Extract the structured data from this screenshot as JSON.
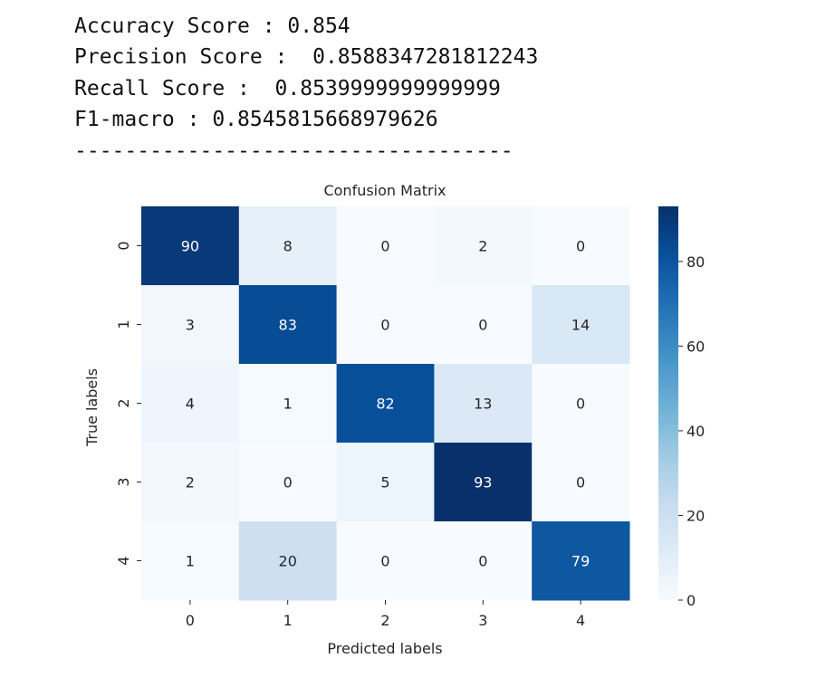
{
  "output_lines": [
    "Accuracy Score : 0.854",
    "Precision Score :  0.8588347281812243",
    "Recall Score :  0.8539999999999999",
    "F1-macro : 0.8545815668979626",
    "-----------------------------------"
  ],
  "chart_data": {
    "type": "heatmap",
    "title": "Confusion Matrix",
    "xlabel": "Predicted labels",
    "ylabel": "True labels",
    "x_categories": [
      "0",
      "1",
      "2",
      "3",
      "4"
    ],
    "y_categories": [
      "0",
      "1",
      "2",
      "3",
      "4"
    ],
    "values": [
      [
        90,
        8,
        0,
        2,
        0
      ],
      [
        3,
        83,
        0,
        0,
        14
      ],
      [
        4,
        1,
        82,
        13,
        0
      ],
      [
        2,
        0,
        5,
        93,
        0
      ],
      [
        1,
        20,
        0,
        0,
        79
      ]
    ],
    "colormap": "Blues",
    "clim": [
      0,
      93
    ],
    "colorbar_ticks": [
      0,
      20,
      40,
      60,
      80
    ]
  }
}
